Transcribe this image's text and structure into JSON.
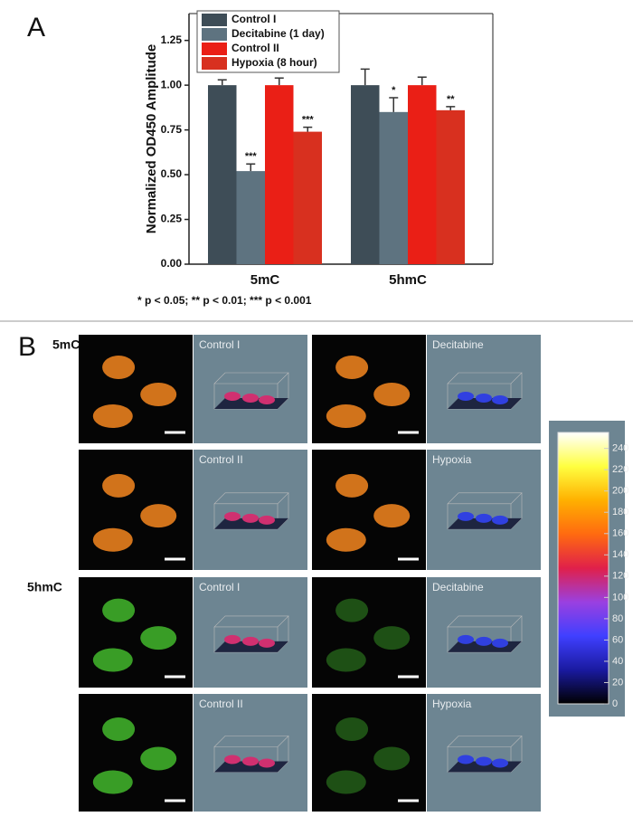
{
  "panel_letters": [
    "A",
    "B"
  ],
  "footnote": "* p < 0.05; ** p < 0.01; *** p < 0.001",
  "row_labels": [
    "5mC",
    "5hmC"
  ],
  "panels": [
    "Control I",
    "Decitabine",
    "Control II",
    "Hypoxia",
    "Control I",
    "Decitabine",
    "Control II",
    "Hypoxia"
  ],
  "chart_data": [
    {
      "type": "bar",
      "y_label": "Normalized OD450 Amplitude",
      "categories": [
        "5mC",
        "5hmC"
      ],
      "series": [
        {
          "name": "Control I",
          "color": "#3e4d57",
          "values": [
            1.0,
            1.0
          ],
          "errors": [
            0.03,
            0.09
          ]
        },
        {
          "name": "Decitabine (1 day)",
          "color": "#5e7380",
          "values": [
            0.52,
            0.85
          ],
          "errors": [
            0.04,
            0.08
          ],
          "annotations": [
            "***",
            "*"
          ]
        },
        {
          "name": "Control II",
          "color": "#ea1f16",
          "values": [
            1.0,
            1.0
          ],
          "errors": [
            0.04,
            0.045
          ]
        },
        {
          "name": "Hypoxia (8 hour)",
          "color": "#d8301f",
          "values": [
            0.74,
            0.86
          ],
          "errors": [
            0.025,
            0.02
          ],
          "annotations": [
            "***",
            "**"
          ]
        }
      ],
      "ylim": [
        0,
        1.4
      ],
      "yticks": [
        {
          "value": 0,
          "label": "0.00"
        },
        {
          "value": 0.25,
          "label": "0.25"
        },
        {
          "value": 0.5,
          "label": "0.50"
        },
        {
          "value": 0.75,
          "label": "0.75"
        },
        {
          "value": 1,
          "label": "1.00"
        },
        {
          "value": 1.25,
          "label": "1.25"
        }
      ]
    },
    {
      "type": "colorbar",
      "ylim": [
        0,
        255
      ],
      "yticks": [
        0,
        20,
        40,
        60,
        80,
        100,
        120,
        140,
        160,
        180,
        200,
        220,
        240
      ],
      "colors": [
        "#000000",
        "#1a1aa0",
        "#4040ff",
        "#9a40e0",
        "#e0204a",
        "#ff6a10",
        "#ffb000",
        "#ffff40",
        "#ffffff"
      ]
    }
  ]
}
